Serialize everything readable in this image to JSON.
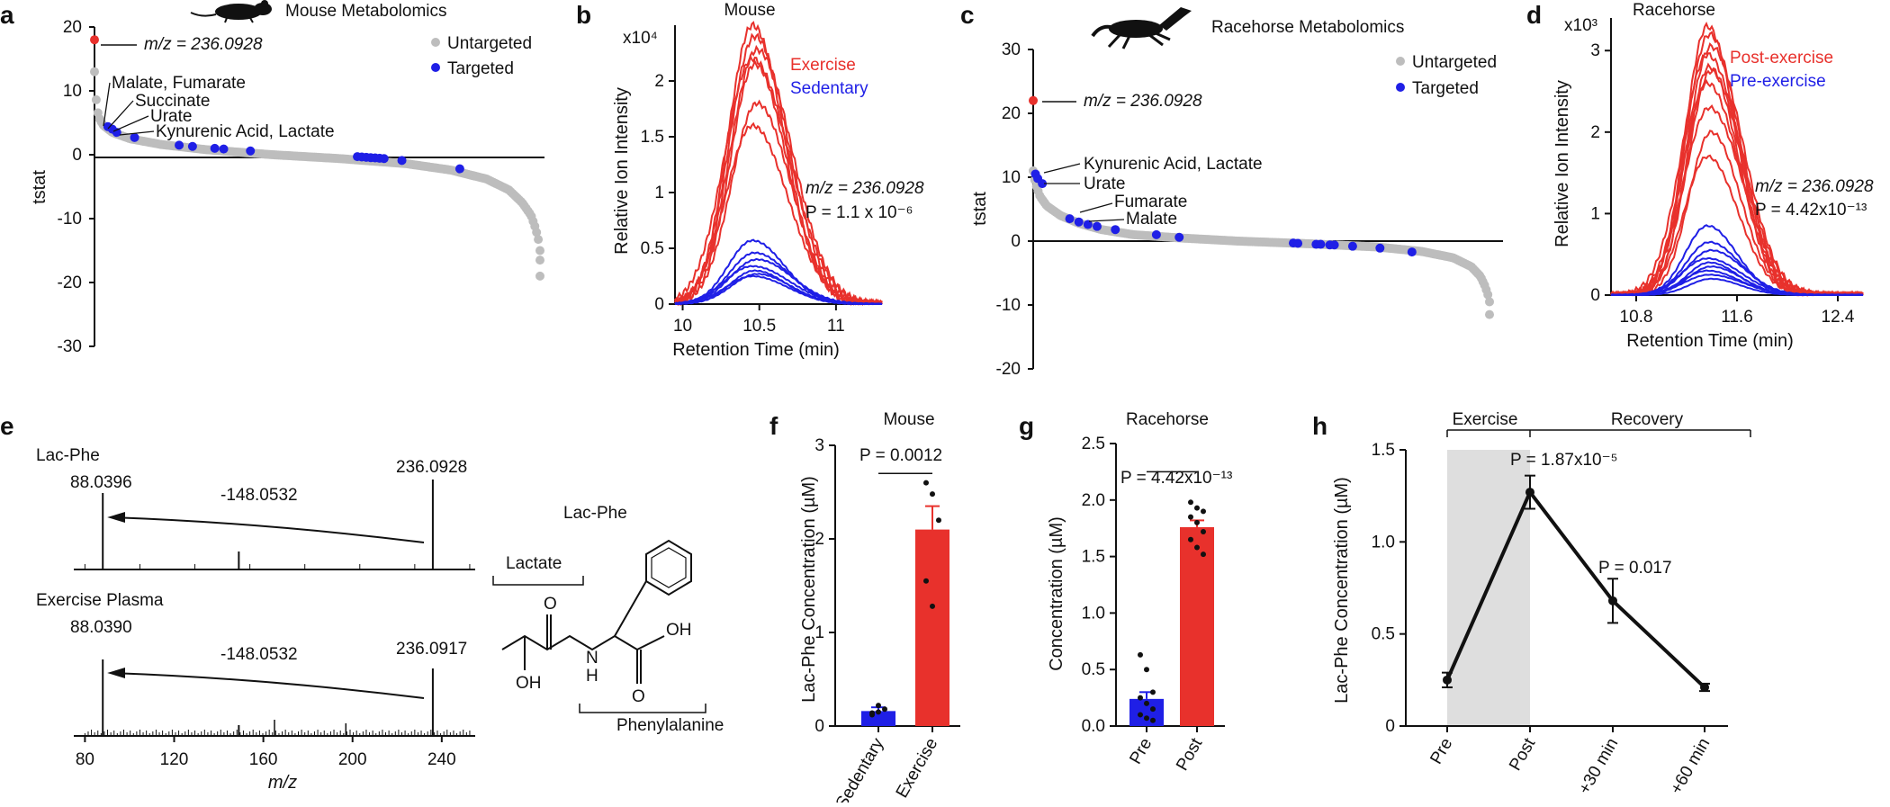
{
  "panel_labels": {
    "a": "a",
    "b": "b",
    "c": "c",
    "d": "d",
    "e": "e",
    "f": "f",
    "g": "g",
    "h": "h"
  },
  "colors": {
    "untargeted": "#bdbdbd",
    "targeted": "#1f1fe6",
    "highlight": "#e8312c",
    "exercise": "#e8312c",
    "sedentary": "#1f1fe6",
    "axis": "#111111",
    "shade": "#dedede"
  },
  "icons": {
    "a": "mouse-silhouette-icon",
    "c": "horse-silhouette-icon",
    "e": "lac-phe-structure-icon"
  },
  "chart_data": [
    {
      "id": "a",
      "type": "scatter",
      "title": "Mouse Metabolomics",
      "ylabel": "tstat",
      "ylim": [
        -30,
        20
      ],
      "yticks": [
        20,
        10,
        0,
        -10,
        -20,
        -30
      ],
      "legend": [
        "Untargeted",
        "Targeted"
      ],
      "legend_position": "top-right",
      "highlight": {
        "label": "m/z = 236.0928",
        "y": 18
      },
      "annotations": [
        "Malate, Fumarate",
        "Succinate",
        "Urate",
        "Kynurenic Acid, Lactate"
      ],
      "untargeted_curve_x": [
        0,
        0.002,
        0.006,
        0.012,
        0.02,
        0.04,
        0.08,
        0.15,
        0.25,
        0.4,
        0.55,
        0.7,
        0.8,
        0.88,
        0.93,
        0.96,
        0.98,
        0.99,
        0.997,
        1.0
      ],
      "untargeted_curve_y": [
        13,
        10,
        7,
        5.5,
        4.6,
        3.5,
        2.5,
        1.6,
        0.8,
        0,
        -0.6,
        -1.4,
        -2.4,
        -3.8,
        -5.5,
        -7.5,
        -9.5,
        -11.5,
        -13.5,
        -15
      ],
      "outliers_y": [
        -16.5,
        -19
      ],
      "targeted_points": [
        [
          0.03,
          4.4
        ],
        [
          0.04,
          4.0
        ],
        [
          0.05,
          3.5
        ],
        [
          0.09,
          2.7
        ],
        [
          0.19,
          1.5
        ],
        [
          0.22,
          1.3
        ],
        [
          0.27,
          1.0
        ],
        [
          0.29,
          0.9
        ],
        [
          0.35,
          0.6
        ],
        [
          0.59,
          -0.3
        ],
        [
          0.6,
          -0.35
        ],
        [
          0.61,
          -0.4
        ],
        [
          0.62,
          -0.45
        ],
        [
          0.63,
          -0.5
        ],
        [
          0.64,
          -0.55
        ],
        [
          0.65,
          -0.6
        ],
        [
          0.69,
          -0.9
        ],
        [
          0.82,
          -2.2
        ]
      ]
    },
    {
      "id": "b",
      "type": "line",
      "title": "Mouse",
      "xlabel": "Retention Time (min)",
      "ylabel": "Relative Ion Intensity",
      "y_multiplier": "x10⁴",
      "xlim": [
        9.95,
        11.3
      ],
      "ylim": [
        0,
        2.5
      ],
      "xticks": [
        10,
        10.5,
        11
      ],
      "yticks": [
        0,
        0.5,
        1,
        1.5,
        2
      ],
      "legend": [
        "Exercise",
        "Sedentary"
      ],
      "annotation_mz": "m/z = 236.0928",
      "annotation_p": "P = 1.1 x 10⁻⁶",
      "peak_center": 10.47,
      "peak_width": 0.18,
      "series": [
        {
          "name": "Exercise",
          "peaks": [
            2.5,
            2.4,
            2.28,
            2.2,
            2.15,
            1.8,
            1.6
          ]
        },
        {
          "name": "Sedentary",
          "peaks": [
            0.57,
            0.46,
            0.4,
            0.34,
            0.3,
            0.27,
            0.25
          ]
        }
      ]
    },
    {
      "id": "c",
      "type": "scatter",
      "title": "Racehorse Metabolomics",
      "ylabel": "tstat",
      "ylim": [
        -20,
        30
      ],
      "yticks": [
        30,
        20,
        10,
        0,
        -10,
        -20
      ],
      "legend": [
        "Untargeted",
        "Targeted"
      ],
      "legend_position": "top-right",
      "highlight": {
        "label": "m/z = 236.0928",
        "y": 22
      },
      "annotations": [
        "Kynurenic Acid, Lactate",
        "Urate",
        "Fumarate",
        "Malate"
      ],
      "untargeted_curve_x": [
        0,
        0.005,
        0.015,
        0.03,
        0.06,
        0.1,
        0.15,
        0.22,
        0.32,
        0.45,
        0.6,
        0.75,
        0.85,
        0.92,
        0.96,
        0.98,
        0.99,
        0.997,
        1.0
      ],
      "untargeted_curve_y": [
        11,
        9,
        7,
        5.5,
        4,
        2.8,
        1.8,
        1,
        0.5,
        0,
        -0.4,
        -0.9,
        -1.6,
        -2.6,
        -4,
        -5.5,
        -7,
        -8.5,
        -9.5
      ],
      "outliers_y": [
        -11.5
      ],
      "targeted_points": [
        [
          0.005,
          10.5
        ],
        [
          0.01,
          9.8
        ],
        [
          0.02,
          9
        ],
        [
          0.08,
          3.5
        ],
        [
          0.1,
          3
        ],
        [
          0.12,
          2.6
        ],
        [
          0.14,
          2.3
        ],
        [
          0.18,
          1.8
        ],
        [
          0.27,
          1
        ],
        [
          0.32,
          0.6
        ],
        [
          0.57,
          -0.3
        ],
        [
          0.58,
          -0.35
        ],
        [
          0.62,
          -0.5
        ],
        [
          0.63,
          -0.5
        ],
        [
          0.65,
          -0.6
        ],
        [
          0.66,
          -0.6
        ],
        [
          0.7,
          -0.8
        ],
        [
          0.76,
          -1.1
        ],
        [
          0.83,
          -1.7
        ]
      ]
    },
    {
      "id": "d",
      "type": "line",
      "title": "Racehorse",
      "xlabel": "Retention Time (min)",
      "ylabel": "Relative Ion Intensity",
      "y_multiplier": "x10³",
      "xlim": [
        10.6,
        12.6
      ],
      "ylim": [
        0,
        3.4
      ],
      "xticks": [
        10.8,
        11.6,
        12.4
      ],
      "yticks": [
        0,
        1,
        2,
        3
      ],
      "legend": [
        "Post-exercise",
        "Pre-exercise"
      ],
      "annotation_mz": "m/z = 236.0928",
      "annotation_p": "P = 4.42x10⁻¹³",
      "peak_center": 11.38,
      "peak_width": 0.2,
      "series": [
        {
          "name": "Post-exercise",
          "peaks": [
            3.3,
            3.2,
            3.05,
            2.95,
            2.8,
            2.75,
            2.6,
            2.3,
            2.0,
            1.7
          ]
        },
        {
          "name": "Pre-exercise",
          "peaks": [
            0.85,
            0.65,
            0.55,
            0.45,
            0.4,
            0.35,
            0.3,
            0.25,
            0.2
          ]
        }
      ]
    },
    {
      "id": "e",
      "type": "spectrum",
      "xlabel": "m/z",
      "xlim": [
        75,
        255
      ],
      "xticks": [
        80,
        120,
        160,
        200,
        240
      ],
      "spectra": [
        {
          "name": "Lac-Phe",
          "peak_left": "88.0396",
          "peak_right": "236.0928",
          "loss": "-148.0532"
        },
        {
          "name": "Exercise Plasma",
          "peak_left": "88.0390",
          "peak_right": "236.0917",
          "loss": "-148.0532"
        }
      ],
      "structure_title": "Lac-Phe",
      "structure_labels": [
        "Lactate",
        "Phenylalanine"
      ],
      "atom_labels": [
        "O",
        "O",
        "OH",
        "N",
        "H",
        "OH",
        "O"
      ]
    },
    {
      "id": "f",
      "type": "bar",
      "title": "Mouse",
      "categories": [
        "Sedentary",
        "Exercise"
      ],
      "values": [
        0.16,
        2.1
      ],
      "errors": [
        0.04,
        0.25
      ],
      "ylabel": "Lac-Phe Concentration (µM)",
      "ylim": [
        0,
        3
      ],
      "yticks": [
        0,
        1,
        2,
        3
      ],
      "pvalue": "P = 0.0012",
      "points": [
        [
          0.12,
          0.15,
          0.18,
          0.14,
          0.22
        ],
        [
          2.6,
          2.48,
          2.2,
          1.55,
          1.28
        ]
      ]
    },
    {
      "id": "g",
      "type": "bar",
      "title": "Racehorse",
      "categories": [
        "Pre",
        "Post"
      ],
      "values": [
        0.24,
        1.76
      ],
      "errors": [
        0.06,
        0.06
      ],
      "ylabel": "Concentration (µM)",
      "ylim": [
        0,
        2.5
      ],
      "yticks": [
        0,
        0.5,
        1.0,
        1.5,
        2.0,
        2.5
      ],
      "pvalue": "P = 4.42x10⁻¹³",
      "points": [
        [
          0.63,
          0.5,
          0.3,
          0.25,
          0.2,
          0.15,
          0.1,
          0.07,
          0.05
        ],
        [
          1.98,
          1.93,
          1.9,
          1.85,
          1.8,
          1.72,
          1.65,
          1.58,
          1.52
        ]
      ]
    },
    {
      "id": "h",
      "type": "line",
      "categories": [
        "Pre",
        "Post",
        "+30 min",
        "+60 min"
      ],
      "values": [
        0.25,
        1.27,
        0.68,
        0.21
      ],
      "errors": [
        0.04,
        0.09,
        0.12,
        0.02
      ],
      "ylabel": "Lac-Phe Concentration (µM)",
      "ylim": [
        0,
        1.5
      ],
      "yticks": [
        0,
        0.5,
        1.0,
        1.5
      ],
      "phases": [
        "Exercise",
        "Recovery"
      ],
      "pvalues": [
        "P = 1.87x10⁻⁵",
        "P = 0.017"
      ]
    }
  ]
}
